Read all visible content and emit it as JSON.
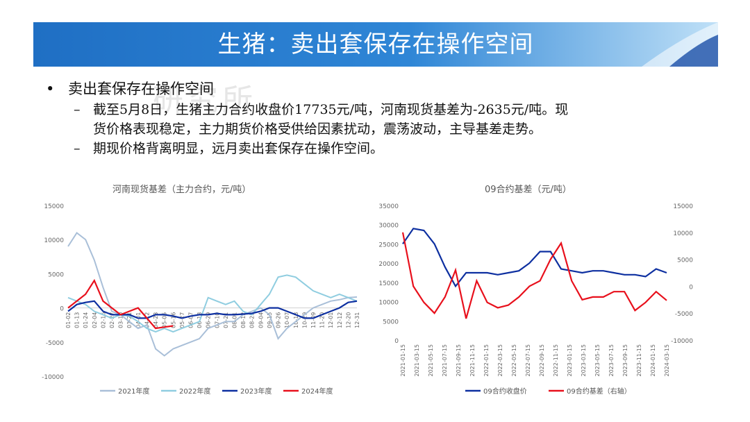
{
  "header": {
    "title": "生猪：卖出套保存在操作空间"
  },
  "bullets": {
    "main": "卖出套保存在操作空间",
    "subs": [
      {
        "line1": "截至5月8日，生猪主力合约收盘价17735元/吨，河南现货基差为-2635元/吨。现",
        "line2": "货价格表现稳定，主力期货价格受供给因素扰动，震荡波动，主导基差走势。"
      },
      {
        "line1": "期现价格背离明显，远月卖出套保存在操作空间。"
      }
    ],
    "watermark": "研究所"
  },
  "colors": {
    "c2021": "#a9bfd8",
    "c2022": "#8fcde0",
    "c2023": "#0d2fa0",
    "c2024": "#e8101c",
    "price": "#0d2fa0",
    "basis": "#e8101c"
  },
  "chart_data": [
    {
      "type": "line",
      "title": "河南现货基差（主力合约，元/吨）",
      "ylim": [
        -10000,
        15000
      ],
      "yticks": [
        15000,
        10000,
        5000,
        0,
        -5000,
        -10000
      ],
      "x_ticks": [
        "01-02",
        "01-13",
        "01-24",
        "02-04",
        "02-16",
        "02-27",
        "03-10",
        "03-21",
        "04-01",
        "04-12",
        "04-23",
        "05-05",
        "05-16",
        "05-27",
        "06-07",
        "06-18",
        "06-29",
        "07-10",
        "07-21",
        "08-01",
        "08-12",
        "08-23",
        "09-04",
        "09-15",
        "09-26",
        "10-07",
        "10-18",
        "10-29",
        "11-09",
        "11-20",
        "12-01",
        "12-12",
        "12-20",
        "12-31"
      ],
      "series": [
        {
          "name": "2021年度",
          "values": [
            9000,
            11000,
            10000,
            7000,
            3000,
            -500,
            -1000,
            -2000,
            -3000,
            -2500,
            -6000,
            -7000,
            -6000,
            -5500,
            -5000,
            -4500,
            -3000,
            -2500,
            -2000,
            -2000,
            -1000,
            -500,
            0,
            -1000,
            -4500,
            -3000,
            -2000,
            -1000,
            0,
            500,
            1000,
            1200,
            1500,
            1600
          ]
        },
        {
          "name": "2022年度",
          "values": [
            1500,
            1000,
            500,
            -500,
            -1000,
            -1500,
            -1000,
            -1200,
            -2000,
            -3000,
            -3500,
            -3000,
            -3500,
            -3000,
            -2500,
            -2000,
            1500,
            1000,
            500,
            1000,
            -500,
            -1000,
            500,
            2000,
            4500,
            4800,
            4500,
            3500,
            2500,
            2000,
            1500,
            2000,
            1500,
            1000
          ]
        },
        {
          "name": "2023年度",
          "values": [
            -500,
            500,
            800,
            1000,
            -500,
            -1000,
            -1000,
            -1000,
            -1500,
            -1500,
            -1000,
            -1000,
            -1200,
            -1500,
            -1200,
            -1000,
            -1000,
            -800,
            -1000,
            -1000,
            -900,
            -800,
            -500,
            0,
            0,
            -500,
            -1000,
            -1500,
            -1500,
            -1000,
            -500,
            0,
            800,
            1000
          ]
        },
        {
          "name": "2024年度",
          "values": [
            0,
            1000,
            2000,
            4000,
            1000,
            0,
            -1000,
            -500,
            0,
            -1500,
            -3000,
            -2800,
            -2635
          ]
        }
      ],
      "legend": "bottom"
    },
    {
      "type": "line",
      "title": "09合约基差（元/吨）",
      "ylim_left": [
        0,
        35000
      ],
      "ylim_right": [
        -10000,
        15000
      ],
      "yticks_left": [
        35000,
        30000,
        25000,
        20000,
        15000,
        10000,
        5000,
        0
      ],
      "yticks_right": [
        15000,
        10000,
        5000,
        0,
        -5000,
        -10000
      ],
      "x_ticks": [
        "2021-01-15",
        "2021-03-15",
        "2021-05-15",
        "2021-07-15",
        "2021-09-15",
        "2021-11-15",
        "2022-01-15",
        "2022-03-15",
        "2022-05-15",
        "2022-07-15",
        "2022-09-15",
        "2022-11-15",
        "2023-01-15",
        "2023-03-15",
        "2023-05-15",
        "2023-07-15",
        "2023-09-15",
        "2023-11-15",
        "2024-01-15",
        "2024-03-15"
      ],
      "series": [
        {
          "name": "09合约收盘价",
          "axis": "left",
          "values": [
            25000,
            29000,
            28500,
            25000,
            19000,
            14000,
            17500,
            17500,
            17500,
            17000,
            17500,
            18000,
            20000,
            23000,
            23000,
            18500,
            18000,
            17500,
            18000,
            18000,
            17500,
            17000,
            17000,
            16500,
            18500,
            17500
          ]
        },
        {
          "name": "09合约基差（右轴）",
          "axis": "right",
          "values": [
            10000,
            0,
            -3000,
            -5000,
            -2000,
            3000,
            -6000,
            1000,
            -3000,
            -4000,
            -3500,
            -2000,
            0,
            1000,
            5000,
            8000,
            1000,
            -2500,
            -2000,
            -2000,
            -1000,
            -1000,
            -4500,
            -3000,
            -1000,
            -2635
          ]
        }
      ],
      "legend": "bottom"
    }
  ]
}
